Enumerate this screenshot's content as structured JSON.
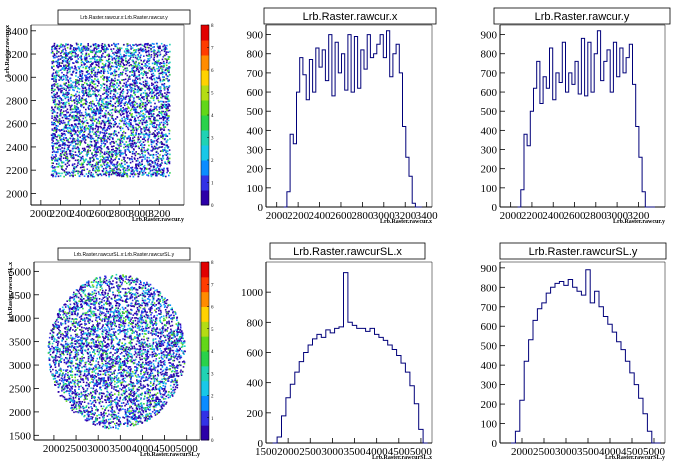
{
  "chart_data": [
    {
      "type": "heatmap",
      "title": "Lrb.Raster.rawcur.x:Lrb.Raster.rawcur.y",
      "xlabel": "Lrb.Raster.rawcur.y",
      "ylabel": "Lrb.Raster.rawcur.x",
      "xlim": [
        1900,
        3450
      ],
      "ylim": [
        1900,
        3450
      ],
      "xticks": [
        2000,
        2200,
        2400,
        2600,
        2800,
        3000,
        3200
      ],
      "yticks": [
        2000,
        2200,
        2400,
        2600,
        2800,
        3000,
        3200,
        3400
      ],
      "ytick_labels": [
        "2000",
        "2200",
        "2400",
        "2600",
        "2800",
        "3000",
        "3200",
        "3400"
      ],
      "palette_ticks": [
        0,
        1,
        2,
        3,
        4,
        5,
        6,
        7,
        8
      ],
      "shape": "square",
      "fill_region": [
        2100,
        3300,
        2150,
        3300
      ]
    },
    {
      "type": "histogram",
      "title": "Lrb.Raster.rawcur.x",
      "xlabel": "Lrb.Raster.rawcur.x",
      "xlim": [
        1900,
        3450
      ],
      "ylim": [
        0,
        950
      ],
      "xticks": [
        2000,
        2200,
        2400,
        2600,
        2800,
        3000,
        3200,
        3400
      ],
      "yticks": [
        0,
        100,
        200,
        300,
        400,
        500,
        600,
        700,
        800,
        900
      ],
      "bins_x": [
        2080,
        2110,
        2140,
        2170,
        2200,
        2230,
        2260,
        2290,
        2320,
        2350,
        2380,
        2410,
        2440,
        2470,
        2500,
        2530,
        2560,
        2590,
        2620,
        2650,
        2680,
        2710,
        2740,
        2770,
        2800,
        2830,
        2860,
        2890,
        2920,
        2950,
        2980,
        3010,
        3040,
        3070,
        3100,
        3130,
        3160,
        3190,
        3220,
        3250,
        3280,
        3310,
        3340
      ],
      "values": [
        0,
        80,
        380,
        330,
        600,
        780,
        690,
        560,
        770,
        600,
        830,
        730,
        820,
        660,
        900,
        580,
        860,
        700,
        800,
        610,
        900,
        600,
        890,
        620,
        820,
        720,
        900,
        780,
        800,
        850,
        900,
        780,
        920,
        680,
        800,
        850,
        700,
        420,
        260,
        160,
        20,
        0,
        0
      ]
    },
    {
      "type": "histogram",
      "title": "Lrb.Raster.rawcur.y",
      "xlabel": "Lrb.Raster.rawcur.y",
      "xlim": [
        1900,
        3450
      ],
      "ylim": [
        0,
        950
      ],
      "xticks": [
        2000,
        2200,
        2400,
        2600,
        2800,
        3000,
        3200
      ],
      "yticks": [
        0,
        100,
        200,
        300,
        400,
        500,
        600,
        700,
        800,
        900
      ],
      "bins_x": [
        2080,
        2110,
        2140,
        2170,
        2200,
        2230,
        2260,
        2290,
        2320,
        2350,
        2380,
        2410,
        2440,
        2470,
        2500,
        2530,
        2560,
        2590,
        2620,
        2650,
        2680,
        2710,
        2740,
        2770,
        2800,
        2830,
        2860,
        2890,
        2920,
        2950,
        2980,
        3010,
        3040,
        3070,
        3100,
        3130,
        3160,
        3190,
        3220,
        3250,
        3280,
        3310,
        3340
      ],
      "values": [
        0,
        90,
        380,
        320,
        500,
        620,
        760,
        540,
        680,
        620,
        830,
        560,
        700,
        650,
        860,
        600,
        700,
        640,
        760,
        590,
        880,
        580,
        860,
        600,
        800,
        920,
        660,
        760,
        820,
        600,
        860,
        680,
        830,
        700,
        780,
        850,
        640,
        420,
        260,
        80,
        0,
        0,
        0
      ]
    },
    {
      "type": "heatmap",
      "title": "Lrb.Raster.rawcurSL.x:Lrb.Raster.rawcurSL.y",
      "xlabel": "Lrb.Raster.rawcurSL.y",
      "ylabel": "Lrb.Raster.rawcurSL.x",
      "xlim": [
        1550,
        5300
      ],
      "ylim": [
        1400,
        5200
      ],
      "xticks": [
        2000,
        2500,
        3000,
        3500,
        4000,
        4500,
        5000
      ],
      "yticks": [
        1500,
        2000,
        2500,
        3000,
        3500,
        4000,
        4500,
        5000
      ],
      "ytick_labels": [
        "1500",
        "2000",
        "2500",
        "3000",
        "3500",
        "4000",
        "4500",
        "5000"
      ],
      "palette_ticks": [
        0,
        1,
        2,
        3,
        4,
        5,
        6,
        7,
        8
      ],
      "shape": "disk",
      "center": [
        3400,
        3300
      ],
      "radius": [
        1550,
        1650
      ]
    },
    {
      "type": "histogram",
      "title": "Lrb.Raster.rawcurSL.x",
      "xlabel": "Lrb.Raster.rawcurSL.x",
      "xlim": [
        1500,
        5250
      ],
      "ylim": [
        0,
        1200
      ],
      "xticks": [
        1500,
        2000,
        2500,
        3000,
        3500,
        4000,
        4500,
        5000
      ],
      "yticks": [
        0,
        200,
        400,
        600,
        800,
        1000
      ],
      "bins_x": [
        1700,
        1800,
        1900,
        2000,
        2100,
        2200,
        2300,
        2400,
        2500,
        2600,
        2700,
        2800,
        2900,
        3000,
        3100,
        3200,
        3300,
        3400,
        3500,
        3600,
        3700,
        3800,
        3900,
        4000,
        4100,
        4200,
        4300,
        4400,
        4500,
        4600,
        4700,
        4800,
        4900,
        5000,
        5100
      ],
      "values": [
        0,
        40,
        180,
        300,
        390,
        470,
        540,
        600,
        650,
        690,
        720,
        700,
        750,
        730,
        760,
        770,
        1130,
        800,
        780,
        760,
        760,
        740,
        760,
        720,
        700,
        680,
        650,
        620,
        580,
        530,
        470,
        380,
        260,
        90,
        0
      ]
    },
    {
      "type": "histogram",
      "title": "Lrb.Raster.rawcurSL.y",
      "xlabel": "Lrb.Raster.rawcurSL.y",
      "xlim": [
        1500,
        5250
      ],
      "ylim": [
        0,
        930
      ],
      "xticks": [
        2000,
        2500,
        3000,
        3500,
        4000,
        4500,
        5000
      ],
      "yticks": [
        0,
        100,
        200,
        300,
        400,
        500,
        600,
        700,
        800,
        900
      ],
      "bins_x": [
        1800,
        1900,
        2000,
        2100,
        2200,
        2300,
        2400,
        2500,
        2600,
        2700,
        2800,
        2900,
        3000,
        3100,
        3200,
        3300,
        3400,
        3500,
        3600,
        3700,
        3800,
        3900,
        4000,
        4100,
        4200,
        4300,
        4400,
        4500,
        4600,
        4700,
        4800,
        4900,
        5000,
        5100
      ],
      "values": [
        0,
        60,
        220,
        420,
        530,
        630,
        690,
        720,
        770,
        800,
        820,
        830,
        810,
        840,
        800,
        780,
        760,
        890,
        720,
        780,
        700,
        650,
        610,
        570,
        520,
        480,
        420,
        360,
        300,
        230,
        150,
        60,
        0,
        0
      ]
    }
  ]
}
